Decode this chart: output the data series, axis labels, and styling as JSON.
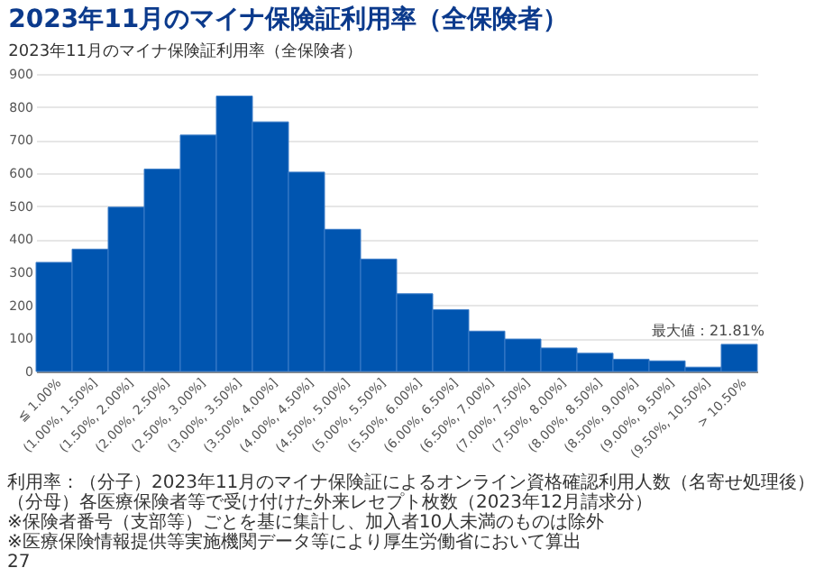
{
  "chart_data": {
    "type": "bar",
    "title": "2023年11月のマイナ保険証利用率（全保険者）",
    "subtitle": "2023年11月のマイナ保険証利用率（全保険者）",
    "categories": [
      "≦ 1.00%",
      "(1.00%, 1.50%]",
      "(1.50%, 2.00%]",
      "(2.00%, 2.50%]",
      "(2.50%, 3.00%]",
      "(3.00%, 3.50%]",
      "(3.50%, 4.00%]",
      "(4.00%, 4.50%]",
      "(4.50%, 5.00%]",
      "(5.00%, 5.50%]",
      "(5.50%, 6.00%]",
      "(6.00%, 6.50%]",
      "(6.50%, 7.00%]",
      "(7.00%, 7.50%]",
      "(7.50%, 8.00%]",
      "(8.00%, 8.50%]",
      "(8.50%, 9.00%]",
      "(9.00%, 9.50%]",
      "(9.50%, 10.50%]",
      "> 10.50%"
    ],
    "values": [
      330,
      370,
      497,
      612,
      715,
      833,
      755,
      603,
      430,
      340,
      235,
      187,
      122,
      98,
      71,
      55,
      37,
      32,
      13,
      82
    ],
    "color": "#0055b0",
    "ylim": [
      0,
      900
    ],
    "yticks": [
      0,
      100,
      200,
      300,
      400,
      500,
      600,
      700,
      800,
      900
    ],
    "grid": "y",
    "annotations": [
      {
        "text": "最大値：21.81%",
        "x": "> 10.50%",
        "y": 82
      },
      "利用率：（分子）2023年11月のマイナ保険証によるオンライン資格確認利用人数（名寄せ処理後）",
      "（分母）各医療保険者等で受け付けた外来レセプト枚数（2023年12月請求分）",
      "※保険者番号（支部等）ごとを基に集計し、加入者10人未満のものは除外",
      "※医療保険情報提供等実施機関データ等により厚生労働省において算出",
      "27"
    ]
  }
}
